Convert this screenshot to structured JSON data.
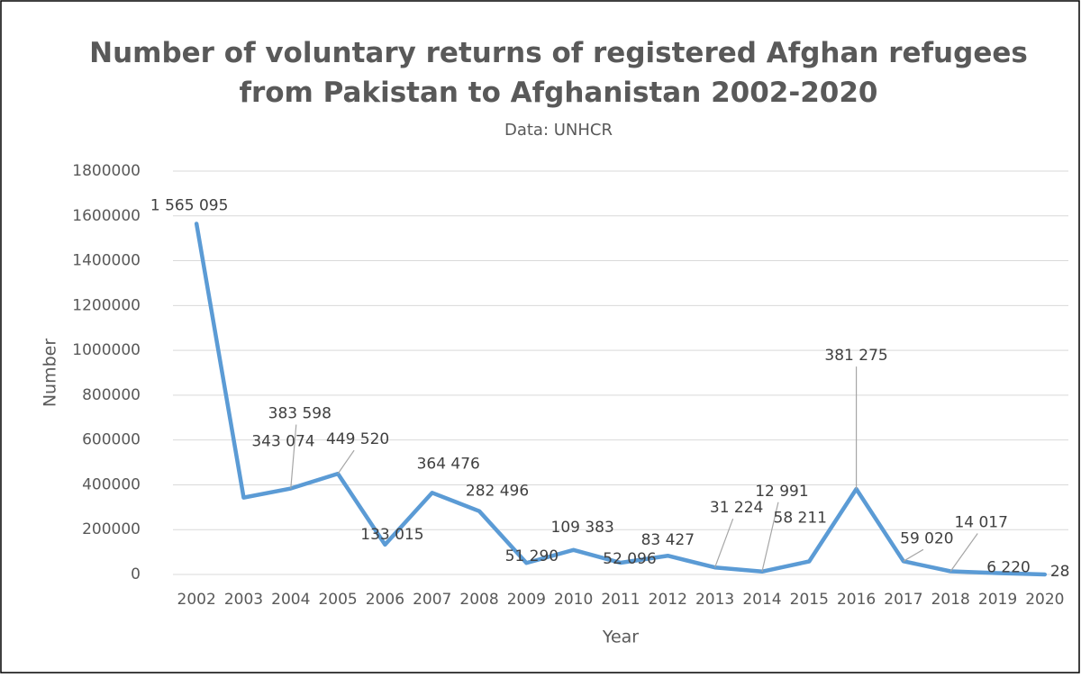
{
  "chart_data": {
    "type": "line",
    "title": "Number of voluntary returns of registered Afghan refugees from Pakistan to Afghanistan 2002-2020",
    "subtitle": "Data: UNHCR",
    "x_label": "Year",
    "y_label": "Number",
    "categories": [
      "2002",
      "2003",
      "2004",
      "2005",
      "2006",
      "2007",
      "2008",
      "2009",
      "2010",
      "2011",
      "2012",
      "2013",
      "2014",
      "2015",
      "2016",
      "2017",
      "2018",
      "2019",
      "2020"
    ],
    "series": [
      {
        "name": "Number",
        "color": "#5b9bd5",
        "values": [
          1565095,
          343074,
          383598,
          449520,
          133015,
          364476,
          282496,
          51290,
          109383,
          52096,
          83427,
          31224,
          12991,
          58211,
          381275,
          59020,
          14017,
          6220,
          28
        ],
        "value_labels": [
          "1 565 095",
          "343 074",
          "383 598",
          "449 520",
          "133 015",
          "364 476",
          "282 496",
          "51 290",
          "109 383",
          "52 096",
          "83 427",
          "31 224",
          "12 991",
          "58 211",
          "381 275",
          "59 020",
          "14 017",
          "6 220",
          "28"
        ]
      }
    ],
    "ylim": [
      0,
      1800000
    ],
    "yticks": [
      0,
      200000,
      400000,
      600000,
      800000,
      1000000,
      1200000,
      1400000,
      1600000,
      1800000
    ],
    "grid": true
  }
}
